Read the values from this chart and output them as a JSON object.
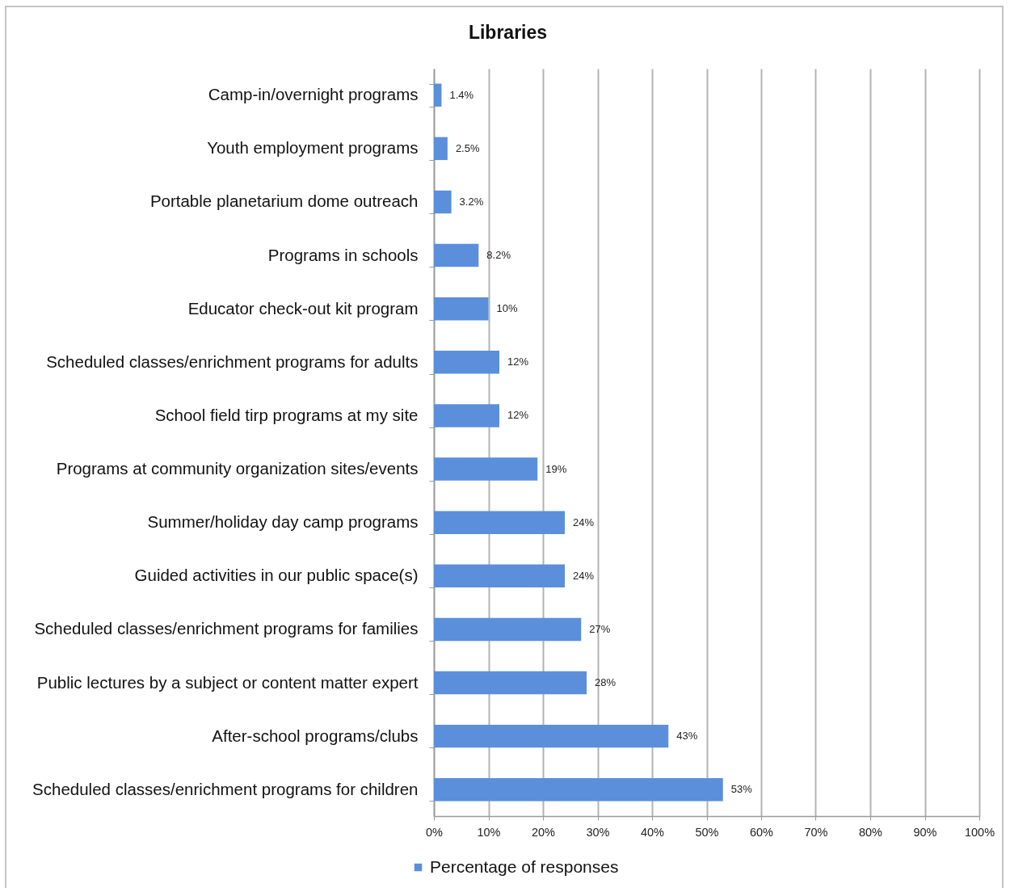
{
  "chart_data": {
    "type": "bar",
    "title": "Libraries",
    "orientation": "horizontal",
    "categories": [
      "Camp-in/overnight programs",
      "Youth employment programs",
      "Portable planetarium dome outreach",
      "Programs in schools",
      "Educator check-out kit program",
      "Scheduled classes/enrichment programs for adults",
      "School field tirp programs at my site",
      "Programs at community organization sites/events",
      "Summer/holiday day camp programs",
      "Guided activities in our public space(s)",
      "Scheduled classes/enrichment programs for families",
      "Public lectures by a subject or content matter expert",
      "After-school programs/clubs",
      "Scheduled classes/enrichment programs for children"
    ],
    "series": [
      {
        "name": "Percentage of responses",
        "color": "#5b8fdb",
        "values": [
          1.4,
          2.5,
          3.2,
          8.2,
          10,
          12,
          12,
          19,
          24,
          24,
          27,
          28,
          43,
          53
        ],
        "value_labels": [
          "1.4%",
          "2.5%",
          "3.2%",
          "8.2%",
          "10%",
          "12%",
          "12%",
          "19%",
          "24%",
          "24%",
          "27%",
          "28%",
          "43%",
          "53%"
        ]
      }
    ],
    "xlim": [
      0,
      100
    ],
    "xticks": [
      {
        "value": 0,
        "label": "0%"
      },
      {
        "value": 10,
        "label": "10%"
      },
      {
        "value": 20,
        "label": "20%"
      },
      {
        "value": 30,
        "label": "30%"
      },
      {
        "value": 40,
        "label": "40%"
      },
      {
        "value": 50,
        "label": "50%"
      },
      {
        "value": 60,
        "label": "60%"
      },
      {
        "value": 70,
        "label": "70%"
      },
      {
        "value": 80,
        "label": "80%"
      },
      {
        "value": 90,
        "label": "90%"
      },
      {
        "value": 100,
        "label": "100%"
      }
    ],
    "grid": "x",
    "legend": "bottom"
  }
}
